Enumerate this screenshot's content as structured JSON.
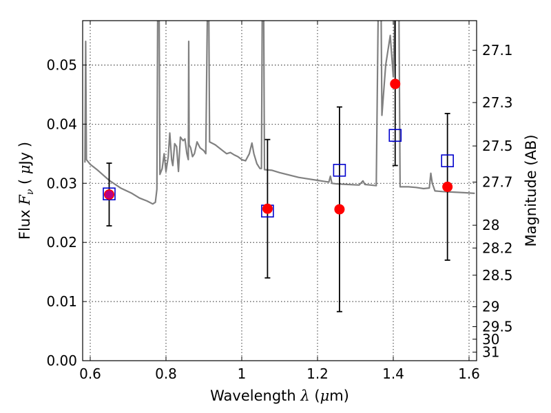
{
  "chart_data": {
    "type": "scatter",
    "title": "",
    "xlabel": "Wavelength λ (μm)",
    "ylabel": "Flux F_ν ( μJy )",
    "ylabel_right": "Magnitude (AB)",
    "xlim": [
      0.58,
      1.62
    ],
    "ylim": [
      0.0,
      0.0575
    ],
    "grid": true,
    "x_ticks": [
      {
        "value": 0.6,
        "label": "0.6"
      },
      {
        "value": 0.8,
        "label": "0.8"
      },
      {
        "value": 1.0,
        "label": "1"
      },
      {
        "value": 1.2,
        "label": "1.2"
      },
      {
        "value": 1.4,
        "label": "1.4"
      },
      {
        "value": 1.6,
        "label": "1.6"
      }
    ],
    "y_ticks": [
      {
        "value": 0.0,
        "label": "0.00"
      },
      {
        "value": 0.01,
        "label": "0.01"
      },
      {
        "value": 0.02,
        "label": "0.02"
      },
      {
        "value": 0.03,
        "label": "0.03"
      },
      {
        "value": 0.04,
        "label": "0.04"
      },
      {
        "value": 0.05,
        "label": "0.05"
      }
    ],
    "mag_ticks": [
      {
        "mag": 27.1,
        "label": "27.1"
      },
      {
        "mag": 27.3,
        "label": "27.3"
      },
      {
        "mag": 27.5,
        "label": "27.5"
      },
      {
        "mag": 27.7,
        "label": "27.7"
      },
      {
        "mag": 28.0,
        "label": "28"
      },
      {
        "mag": 28.2,
        "label": "28.2"
      },
      {
        "mag": 28.5,
        "label": "28.5"
      },
      {
        "mag": 29.0,
        "label": "29"
      },
      {
        "mag": 29.5,
        "label": "29.5"
      },
      {
        "mag": 30.0,
        "label": "30"
      },
      {
        "mag": 31.0,
        "label": "31"
      }
    ],
    "series": [
      {
        "kind": "model-spectrum",
        "color": "#808080",
        "points": [
          [
            0.586,
            0.0335
          ],
          [
            0.588,
            0.054
          ],
          [
            0.59,
            0.034
          ],
          [
            0.6,
            0.0332
          ],
          [
            0.62,
            0.0322
          ],
          [
            0.65,
            0.0305
          ],
          [
            0.68,
            0.0292
          ],
          [
            0.71,
            0.0283
          ],
          [
            0.73,
            0.0275
          ],
          [
            0.75,
            0.027
          ],
          [
            0.765,
            0.0265
          ],
          [
            0.772,
            0.0268
          ],
          [
            0.776,
            0.029
          ],
          [
            0.778,
            0.058
          ],
          [
            0.782,
            0.058
          ],
          [
            0.784,
            0.0315
          ],
          [
            0.79,
            0.0325
          ],
          [
            0.795,
            0.035
          ],
          [
            0.8,
            0.032
          ],
          [
            0.806,
            0.0345
          ],
          [
            0.81,
            0.0385
          ],
          [
            0.815,
            0.034
          ],
          [
            0.818,
            0.033
          ],
          [
            0.823,
            0.0367
          ],
          [
            0.828,
            0.0362
          ],
          [
            0.833,
            0.032
          ],
          [
            0.838,
            0.0378
          ],
          [
            0.845,
            0.0372
          ],
          [
            0.85,
            0.0375
          ],
          [
            0.855,
            0.035
          ],
          [
            0.859,
            0.034
          ],
          [
            0.86,
            0.054
          ],
          [
            0.861,
            0.0365
          ],
          [
            0.865,
            0.036
          ],
          [
            0.87,
            0.0345
          ],
          [
            0.875,
            0.035
          ],
          [
            0.882,
            0.037
          ],
          [
            0.89,
            0.036
          ],
          [
            0.9,
            0.0355
          ],
          [
            0.905,
            0.035
          ],
          [
            0.909,
            0.058
          ],
          [
            0.913,
            0.058
          ],
          [
            0.915,
            0.037
          ],
          [
            0.93,
            0.0365
          ],
          [
            0.95,
            0.0355
          ],
          [
            0.96,
            0.035
          ],
          [
            0.97,
            0.0352
          ],
          [
            0.98,
            0.0348
          ],
          [
            0.99,
            0.0345
          ],
          [
            1.0,
            0.034
          ],
          [
            1.01,
            0.0338
          ],
          [
            1.02,
            0.035
          ],
          [
            1.027,
            0.0368
          ],
          [
            1.032,
            0.035
          ],
          [
            1.04,
            0.0333
          ],
          [
            1.048,
            0.0325
          ],
          [
            1.052,
            0.0325
          ],
          [
            1.054,
            0.058
          ],
          [
            1.058,
            0.058
          ],
          [
            1.06,
            0.0323
          ],
          [
            1.08,
            0.0322
          ],
          [
            1.1,
            0.0318
          ],
          [
            1.15,
            0.031
          ],
          [
            1.17,
            0.0308
          ],
          [
            1.2,
            0.0305
          ],
          [
            1.22,
            0.0303
          ],
          [
            1.23,
            0.0302
          ],
          [
            1.234,
            0.0312
          ],
          [
            1.238,
            0.03
          ],
          [
            1.25,
            0.0299
          ],
          [
            1.28,
            0.0298
          ],
          [
            1.31,
            0.0297
          ],
          [
            1.32,
            0.0304
          ],
          [
            1.325,
            0.0298
          ],
          [
            1.34,
            0.0297
          ],
          [
            1.355,
            0.0296
          ],
          [
            1.36,
            0.058
          ],
          [
            1.368,
            0.058
          ],
          [
            1.37,
            0.0415
          ],
          [
            1.38,
            0.05
          ],
          [
            1.392,
            0.055
          ],
          [
            1.4,
            0.048
          ],
          [
            1.404,
            0.058
          ],
          [
            1.415,
            0.058
          ],
          [
            1.418,
            0.0294
          ],
          [
            1.44,
            0.0294
          ],
          [
            1.46,
            0.0293
          ],
          [
            1.48,
            0.0291
          ],
          [
            1.495,
            0.0292
          ],
          [
            1.499,
            0.0317
          ],
          [
            1.503,
            0.03
          ],
          [
            1.51,
            0.0287
          ],
          [
            1.53,
            0.0286
          ],
          [
            1.56,
            0.0285
          ],
          [
            1.59,
            0.0284
          ],
          [
            1.615,
            0.0283
          ]
        ]
      },
      {
        "kind": "observed",
        "color": "#ff0000",
        "marker": "circle",
        "points": [
          {
            "x": 0.65,
            "y": 0.0281,
            "err": 0.0053
          },
          {
            "x": 1.068,
            "y": 0.0257,
            "err": 0.0117
          },
          {
            "x": 1.258,
            "y": 0.0256,
            "err": 0.0173
          },
          {
            "x": 1.405,
            "y": 0.0468,
            "err": 0.0138
          },
          {
            "x": 1.543,
            "y": 0.0294,
            "err": 0.0124
          }
        ]
      },
      {
        "kind": "model-band",
        "color": "#0000cc",
        "marker": "square",
        "points": [
          {
            "x": 0.65,
            "y": 0.0282
          },
          {
            "x": 1.068,
            "y": 0.0253
          },
          {
            "x": 1.258,
            "y": 0.0322
          },
          {
            "x": 1.405,
            "y": 0.0381
          },
          {
            "x": 1.543,
            "y": 0.0338
          }
        ]
      }
    ]
  }
}
